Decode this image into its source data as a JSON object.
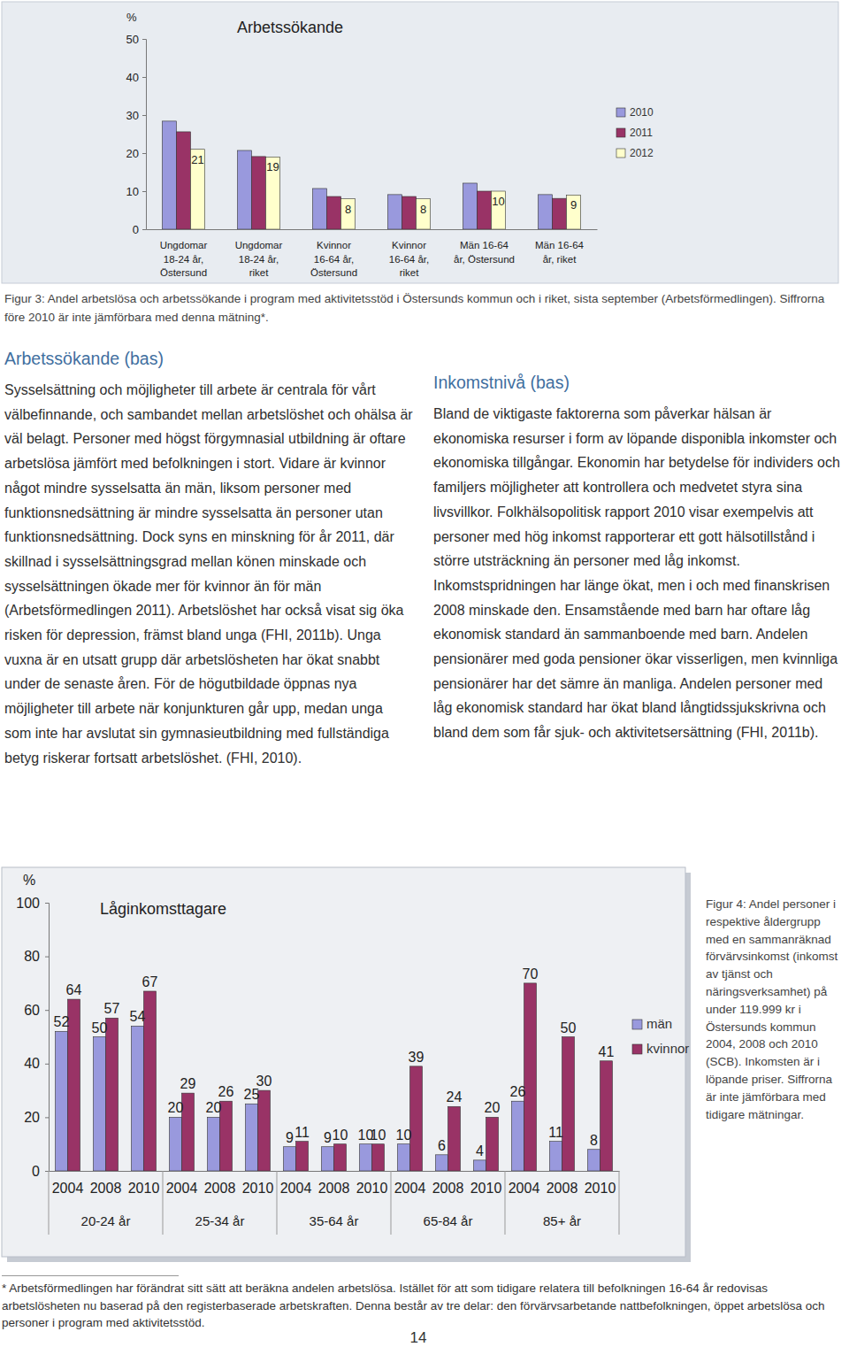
{
  "chart_data": [
    {
      "type": "bar",
      "title": "Arbetssökande",
      "y_label": "%",
      "caption": "Figur 3: Andel arbetslösa och arbetssökande i program med aktivitetsstöd i Östersunds kommun och i riket, sista september (Arbetsförmedlingen). Siffrorna före 2010 är inte jämförbara med denna mätning*.",
      "categories": [
        "Ungdomar 18-24 år, Östersund",
        "Ungdomar 18-24 år, riket",
        "Kvinnor 16-64 år, Östersund",
        "Kvinnor 16-64 år, riket",
        "Män 16-64 år, Östersund",
        "Män 16-64 år, riket"
      ],
      "series": [
        {
          "name": "2010",
          "color": "#9999dd",
          "values": [
            28.4,
            20.7,
            10.7,
            9.1,
            12.1,
            9.1
          ]
        },
        {
          "name": "2011",
          "color": "#993366",
          "values": [
            25.6,
            19.1,
            8.6,
            8.6,
            10,
            8.1
          ]
        },
        {
          "name": "2012",
          "color": "#ffffcc",
          "values": [
            21,
            19,
            8,
            8,
            10,
            9
          ],
          "data_labels": true
        }
      ],
      "ylim": [
        0,
        50
      ],
      "yticks": [
        0,
        10,
        20,
        30,
        40,
        50
      ],
      "grid": false,
      "legend": "right"
    },
    {
      "type": "bar",
      "title": "Låginkomsttagare",
      "y_label": "%",
      "caption": "Figur 4: Andel personer i respektive åldergrupp med en sammanräknad förvärvsinkomst (inkomst av tjänst och näringsverksamhet) på under 119.999 kr i Östersunds kommun 2004, 2008 och 2010 (SCB). Inkomsten är i löpande priser. Siffrorna är inte jämförbara med tidigare mätningar.",
      "categories": [
        "2004",
        "2008",
        "2010",
        "2004",
        "2008",
        "2010",
        "2004",
        "2008",
        "2010",
        "2004",
        "2008",
        "2010",
        "2004",
        "2008",
        "2010"
      ],
      "category_groups": [
        "20-24 år",
        "25-34 år",
        "35-64 år",
        "65-84 år",
        "85+ år"
      ],
      "series": [
        {
          "name": "män",
          "color": "#9999dd",
          "values": [
            52,
            50,
            54,
            20,
            20,
            25,
            9,
            9,
            10,
            10,
            6,
            4,
            26,
            11,
            8
          ]
        },
        {
          "name": "kvinnor",
          "color": "#993366",
          "values": [
            64,
            57,
            67,
            29,
            26,
            30,
            11,
            10,
            10,
            39,
            24,
            20,
            70,
            50,
            41
          ]
        }
      ],
      "ylim": [
        0,
        100
      ],
      "yticks": [
        0,
        20,
        40,
        60,
        80,
        100
      ],
      "grid": false,
      "legend": "right",
      "data_labels": true
    }
  ],
  "document": {
    "sections": [
      {
        "heading": "Arbetssökande (bas)",
        "text": "Sysselsättning och möjligheter till arbete är centrala för vårt välbefinnande, och sambandet mellan arbetslöshet och ohälsa är väl belagt. Personer med högst förgymnasial utbildning är oftare arbetslösa jämfört med befolkningen i stort. Vidare är kvinnor något mindre sysselsatta än män, liksom personer med funktionsnedsättning är mindre sysselsatta än personer utan funktionsnedsättning. Dock syns en minskning för år 2011, där skillnad i sysselsättningsgrad mellan könen minskade och sysselsättningen ökade mer för kvinnor än för män (Arbetsförmedlingen 2011). Arbetslöshet har också visat sig öka risken för depression, främst bland unga (FHI, 2011b). Unga vuxna är en utsatt grupp där arbetslösheten har ökat snabbt under de senaste åren. För de högutbildade öppnas nya möjligheter till arbete när konjunkturen går upp, medan unga som inte har avslutat sin gymnasieutbildning med fullständiga betyg riskerar fortsatt arbetslöshet. (FHI, 2010)."
      },
      {
        "heading": "Inkomstnivå (bas)",
        "text": "Bland de viktigaste faktorerna som påverkar hälsan är ekonomiska resurser i form av löpande disponibla inkomster och ekonomiska tillgångar. Ekonomin har betydelse för individers och familjers möjligheter att kontrollera och medvetet styra sina livsvillkor. Folkhälsopolitisk rapport 2010 visar exempelvis att personer med hög inkomst rapporterar ett gott hälsotillstånd i större utsträckning än personer med låg inkomst. Inkomstspridningen har länge ökat, men i och med finanskrisen 2008 minskade den. Ensamstående med barn har oftare låg ekonomisk standard än sammanboende med barn. Andelen pensionärer med goda pensioner ökar visserligen, men kvinnliga pensionärer har det sämre än manliga. Andelen personer med låg ekonomisk standard har ökat bland långtidssjukskrivna och bland dem som får sjuk- och aktivitetsersättning (FHI, 2011b)."
      }
    ],
    "footnote": "* Arbetsförmedlingen har förändrat sitt sätt att beräkna andelen arbetslösa. Istället för att som tidigare relatera till befolkningen 16-64 år redovisas arbetslösheten nu baserad på den registerbaserade arbetskraften. Denna består av tre delar: den förvärvsarbetande nattbefolkningen, öppet arbetslösa och personer i program med aktivitetsstöd.",
    "page_number": 14
  }
}
